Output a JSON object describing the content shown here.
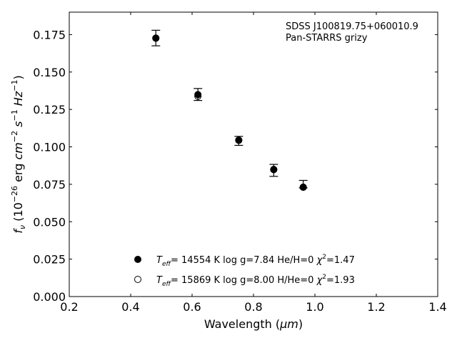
{
  "chart_data": {
    "type": "scatter",
    "x": [
      0.482,
      0.619,
      0.752,
      0.866,
      0.962
    ],
    "series": [
      {
        "values": [
          0.1727,
          0.1349,
          0.1044,
          0.0848,
          0.073
        ],
        "marker": "filled",
        "legend": {
          "teff_prefix": "T",
          "teff_sub": "eff",
          "teff_rest": "= 14554 K  log g=7.84  He/H=0  ",
          "chi_symbol": "χ",
          "chi_sup": "2",
          "chi_rest": "=1.47"
        }
      },
      {
        "values": [
          0.1726,
          0.1338,
          0.1045,
          0.0849,
          0.0731
        ],
        "marker": "open",
        "legend": {
          "teff_prefix": "T",
          "teff_sub": "eff",
          "teff_rest": "= 15869 K  log g=8.00  H/He=0  ",
          "chi_symbol": "χ",
          "chi_sup": "2",
          "chi_rest": "=1.93"
        }
      }
    ],
    "observed": {
      "y": [
        0.1727,
        0.135,
        0.104,
        0.0843,
        0.0751
      ],
      "yerr": [
        0.0052,
        0.004,
        0.003,
        0.004,
        0.0025
      ]
    },
    "xlim": [
      0.2,
      1.4
    ],
    "ylim": [
      0.0,
      0.19
    ],
    "xticks": [
      0.2,
      0.4,
      0.6,
      0.8,
      1.0,
      1.2,
      1.4
    ],
    "xtick_labels": [
      "0.2",
      "0.4",
      "0.6",
      "0.8",
      "1.0",
      "1.2",
      "1.4"
    ],
    "yticks": [
      0.0,
      0.025,
      0.05,
      0.075,
      0.1,
      0.125,
      0.15,
      0.175
    ],
    "ytick_labels": [
      "0.000",
      "0.025",
      "0.050",
      "0.075",
      "0.100",
      "0.125",
      "0.150",
      "0.175"
    ],
    "xlabel": {
      "pre": "Wavelength (",
      "mu": "μm",
      "post": ")"
    },
    "ylabel": {
      "f": "f",
      "nu": "ν",
      "open": " (10",
      "exp": "−26",
      "unit1": " erg ",
      "cm": "cm",
      "cmexp": "−2",
      "s": " s",
      "sexp": "−1",
      "hz": " Hz",
      "hzexp": "−1",
      "close": ")"
    },
    "annotation": [
      "SDSS J100819.75+060010.9",
      "Pan-STARRS grizy"
    ],
    "grid": false,
    "legend_position": "lower-center"
  }
}
